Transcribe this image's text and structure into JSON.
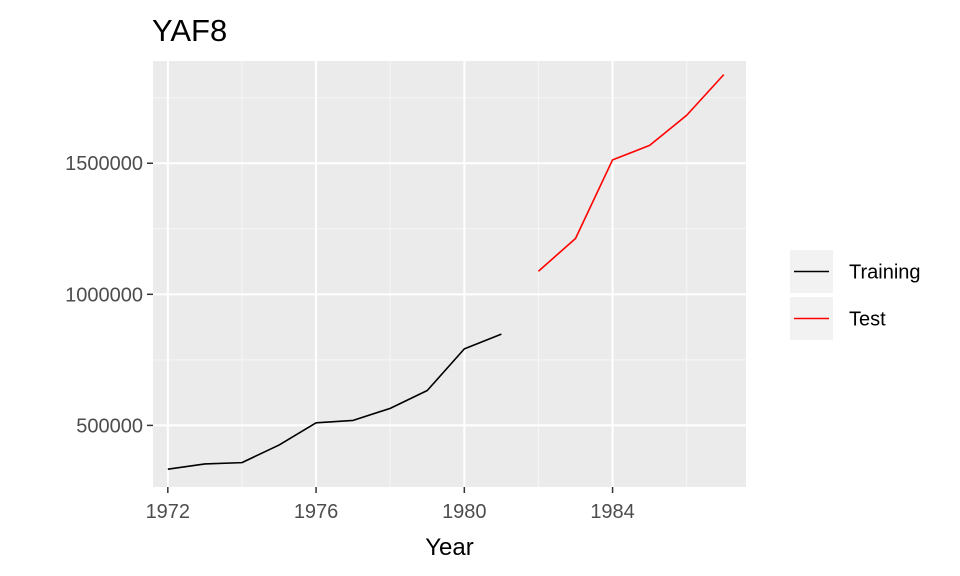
{
  "chart_data": {
    "type": "line",
    "title": "YAF8",
    "xlabel": "Year",
    "ylabel": "",
    "xlim": [
      1971.6,
      1987.6
    ],
    "ylim": [
      265000,
      1890000
    ],
    "x_ticks": [
      1972,
      1976,
      1980,
      1984
    ],
    "x_tick_labels": [
      "1972",
      "1976",
      "1980",
      "1984"
    ],
    "y_ticks": [
      500000,
      1000000,
      1500000
    ],
    "y_tick_labels": [
      "500000",
      "1000000",
      "1500000"
    ],
    "grid": true,
    "legend_position": "right",
    "series": [
      {
        "name": "Training",
        "color": "#000000",
        "x": [
          1972,
          1973,
          1974,
          1975,
          1976,
          1977,
          1978,
          1979,
          1980,
          1981
        ],
        "values": [
          333000,
          353000,
          358000,
          425000,
          510000,
          519000,
          565000,
          633000,
          792000,
          848000
        ]
      },
      {
        "name": "Test",
        "color": "#ff0000",
        "x": [
          1982,
          1983,
          1984,
          1985,
          1986,
          1987
        ],
        "values": [
          1088000,
          1213000,
          1513000,
          1568000,
          1683000,
          1838000
        ]
      }
    ]
  },
  "colors": {
    "panel_background": "#ebebeb",
    "grid_major": "#ffffff",
    "training": "#000000",
    "test": "#ff0000",
    "legend_key_background": "#f2f2f2"
  }
}
